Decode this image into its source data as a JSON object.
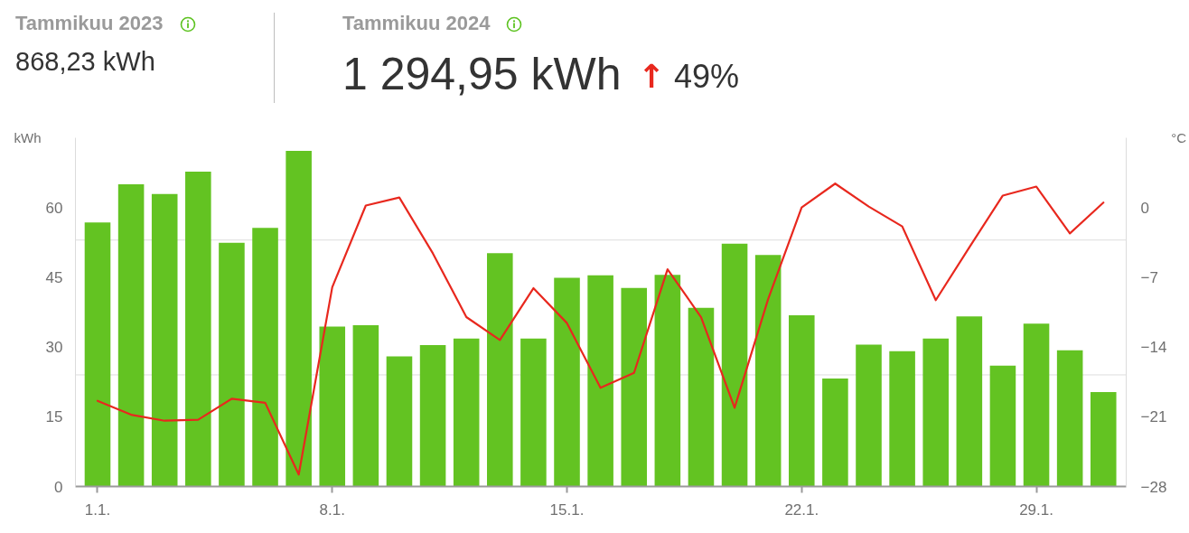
{
  "chart_data": {
    "type": "bar",
    "ylabel": "kWh",
    "y2label": "°C",
    "annotations": [
      "Tammikuu 2023",
      "868,23 kWh",
      "Tammikuu 2024",
      "1 294,95 kWh",
      "↑",
      "49%"
    ],
    "categories": [
      "1.1.",
      null,
      null,
      null,
      null,
      null,
      null,
      "8.1.",
      null,
      null,
      null,
      null,
      null,
      null,
      "15.1.",
      null,
      null,
      null,
      null,
      null,
      null,
      "22.1.",
      null,
      null,
      null,
      null,
      null,
      null,
      "29.1.",
      null,
      null
    ],
    "series": [
      {
        "color": "#63c322",
        "values": [
          56.8,
          65.0,
          62.9,
          67.7,
          52.4,
          55.6,
          72.2,
          34.4,
          34.7,
          28.0,
          30.4,
          31.8,
          50.2,
          31.8,
          44.9,
          45.4,
          42.7,
          45.5,
          38.4,
          52.2,
          49.8,
          36.8,
          23.2,
          30.5,
          29.1,
          31.8,
          36.6,
          26.0,
          35.0,
          29.3,
          20.3
        ]
      },
      {
        "type": "line",
        "axis": "y2",
        "color": "#e8281e",
        "values": [
          -19.4,
          -20.8,
          -21.4,
          -21.3,
          -19.2,
          -19.6,
          -26.8,
          -8.0,
          0.2,
          1.0,
          -4.6,
          -11.0,
          -13.3,
          -8.1,
          -11.6,
          -18.1,
          -16.6,
          -6.2,
          -11.0,
          -20.1,
          -9.2,
          0.0,
          2.4,
          0.1,
          -1.9,
          -9.3,
          -4.0,
          1.2,
          2.1,
          -2.6,
          0.5
        ]
      }
    ],
    "ylim": [
      0,
      75
    ],
    "yticks": [
      0,
      15,
      30,
      45,
      60
    ],
    "y2lim": [
      -28,
      7
    ],
    "y2ticks": [
      {
        "value": -28,
        "label": "−28"
      },
      {
        "value": -21,
        "label": "−21"
      },
      {
        "value": -14,
        "label": "−14"
      },
      {
        "value": -7,
        "label": "−7"
      },
      0
    ],
    "ref_lines": [
      {
        "axis": "y",
        "value": 53,
        "color": "#dddddd"
      },
      {
        "axis": "y",
        "value": 24,
        "color": "#dddddd"
      }
    ]
  }
}
